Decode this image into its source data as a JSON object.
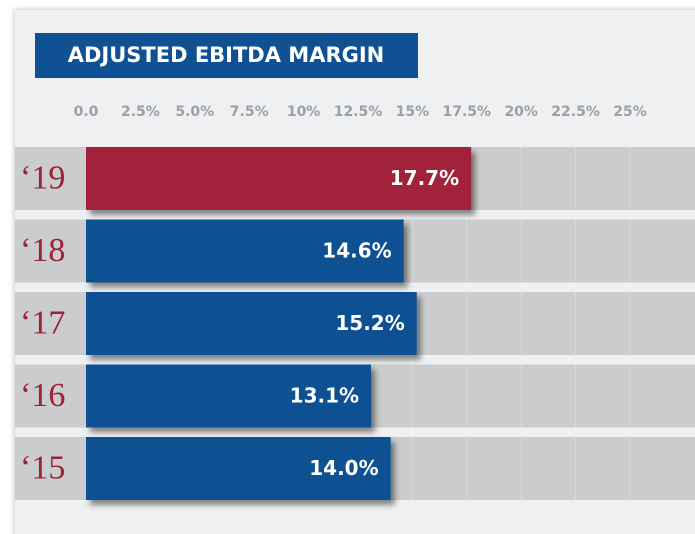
{
  "chart_data": {
    "type": "hbar",
    "title": "ADJUSTED EBITDA MARGIN",
    "categories": [
      "‘19",
      "‘18",
      "‘17",
      "‘16",
      "‘15"
    ],
    "values": [
      17.7,
      14.6,
      15.2,
      13.1,
      14.0
    ],
    "value_labels": [
      "17.7%",
      "14.6%",
      "15.2%",
      "13.1%",
      "14.0%"
    ],
    "colors": [
      "#a3223a",
      "#0f5193",
      "#0f5193",
      "#0f5193",
      "#0f5193"
    ],
    "xlim": [
      0,
      25
    ],
    "xticks": [
      {
        "value": 0,
        "label": "0.0"
      },
      {
        "value": 2.5,
        "label": "2.5%"
      },
      {
        "value": 5,
        "label": "5.0%"
      },
      {
        "value": 7.5,
        "label": "7.5%"
      },
      {
        "value": 10,
        "label": "10%"
      },
      {
        "value": 12.5,
        "label": "12.5%"
      },
      {
        "value": 15,
        "label": "15%"
      },
      {
        "value": 17.5,
        "label": "17.5%"
      },
      {
        "value": 20,
        "label": "20%"
      },
      {
        "value": 22.5,
        "label": "22.5%"
      },
      {
        "value": 25,
        "label": "25%"
      }
    ],
    "grid": true
  }
}
